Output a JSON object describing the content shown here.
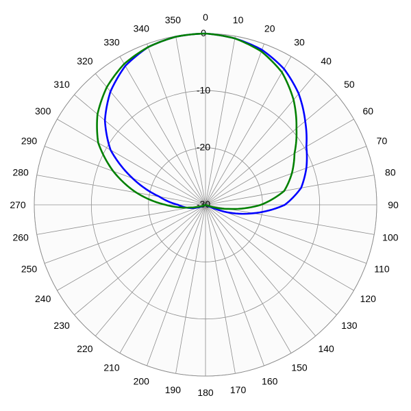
{
  "chart_data": {
    "type": "polar-line",
    "title": "",
    "angle_unit": "degrees",
    "angle_direction": "clockwise",
    "zero_direction": "top",
    "angle_tick_labels": [
      "0",
      "10",
      "20",
      "30",
      "40",
      "50",
      "60",
      "70",
      "80",
      "90",
      "100",
      "110",
      "120",
      "130",
      "140",
      "150",
      "160",
      "170",
      "180",
      "190",
      "200",
      "210",
      "220",
      "230",
      "240",
      "250",
      "260",
      "270",
      "280",
      "290",
      "300",
      "310",
      "320",
      "330",
      "340",
      "350"
    ],
    "radial_axis": {
      "min": -30,
      "max": 0,
      "ticks": [
        0,
        -10,
        -20,
        -30
      ],
      "tick_labels": [
        "0",
        "-10",
        "-20",
        "-30"
      ]
    },
    "grid": true,
    "radial_grid_step_deg": 10,
    "extra_ring_levels": [
      -30,
      -20,
      -10,
      0
    ],
    "series": [
      {
        "color": "#0000ff",
        "angle": [
          0,
          10,
          20,
          30,
          40,
          50,
          60,
          70,
          80,
          90,
          100,
          110,
          115,
          120,
          240,
          245,
          250,
          255,
          260,
          270,
          280,
          290,
          300,
          310,
          320,
          330,
          340,
          350
        ],
        "r": [
          0,
          -0.4,
          -1.1,
          -2.5,
          -4.6,
          -7.2,
          -9.6,
          -11.2,
          -13.0,
          -16.1,
          -21.5,
          -26.5,
          -29.5,
          -30,
          -30,
          -29.6,
          -28.7,
          -27.8,
          -26.9,
          -25.2,
          -21.8,
          -16.4,
          -10.8,
          -7.0,
          -4.1,
          -1.9,
          -0.6,
          -0.1
        ]
      },
      {
        "color": "#008000",
        "angle": [
          0,
          10,
          20,
          30,
          40,
          50,
          60,
          70,
          80,
          90,
          100,
          110,
          120,
          240,
          250,
          255,
          260,
          270,
          280,
          290,
          300,
          310,
          320,
          330,
          340,
          350
        ],
        "r": [
          0,
          -0.4,
          -1.4,
          -3.2,
          -6.0,
          -9.2,
          -12.0,
          -13.9,
          -16.0,
          -20.3,
          -25.9,
          -29.7,
          -30,
          -30,
          -29.5,
          -28.6,
          -27.3,
          -23.0,
          -17.7,
          -12.8,
          -8.3,
          -5.3,
          -3.1,
          -1.5,
          -0.6,
          -0.1
        ]
      }
    ]
  }
}
